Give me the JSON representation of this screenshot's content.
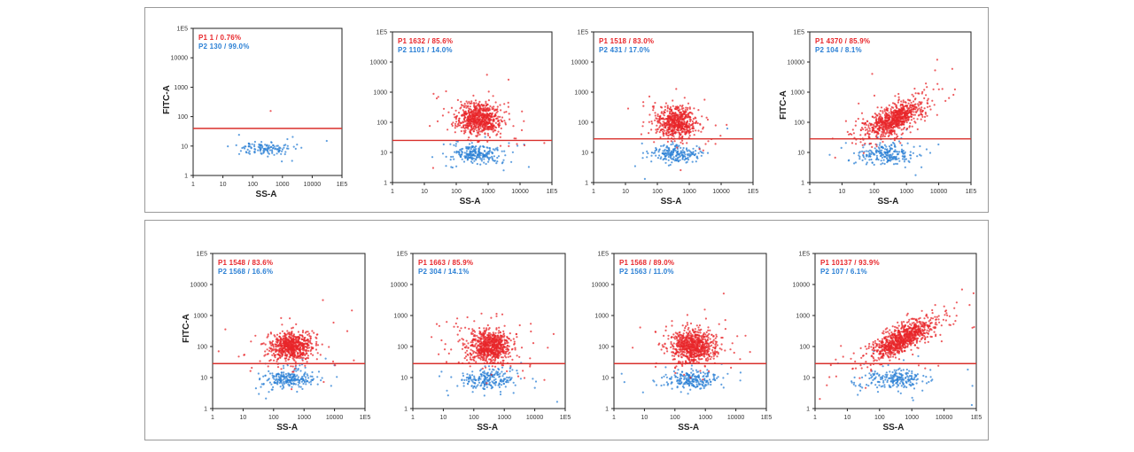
{
  "colors": {
    "p1": "#e8262a",
    "p2": "#2a7fd4",
    "gate": "#d9302c",
    "axis": "#222222",
    "frame": "#9a9a9a"
  },
  "chart_data": [
    {
      "type": "scatter",
      "row": "top",
      "index": 1,
      "xlabel": "SS-A",
      "ylabel": "FITC-A",
      "xticks": [
        "1",
        "10",
        "100",
        "1000",
        "10000",
        "1E5"
      ],
      "yticks": [
        "1",
        "10",
        "100",
        "1000",
        "10000",
        "1E5"
      ],
      "xlim": [
        0,
        5
      ],
      "ylim": [
        0,
        5
      ],
      "gate_y": 1.6,
      "gates": [
        {
          "name": "P1",
          "label": "P1  1 / 0.76%"
        },
        {
          "name": "P2",
          "label": "P2  130 / 99.0%"
        }
      ],
      "p1_cluster": {
        "count": 1,
        "cx": 2.6,
        "cy": 2.2,
        "sx": 0.1,
        "sy": 0.1
      },
      "p2_cluster": {
        "count": 130,
        "cx": 2.4,
        "cy": 0.9,
        "sx": 0.45,
        "sy": 0.12
      }
    },
    {
      "type": "scatter",
      "row": "top",
      "index": 2,
      "xlabel": "SS-A",
      "ylabel": "",
      "xticks": [
        "1",
        "10",
        "100",
        "1000",
        "10000",
        "1E5"
      ],
      "yticks": [
        "1",
        "10",
        "100",
        "1000",
        "10000",
        "1E5"
      ],
      "xlim": [
        0,
        5
      ],
      "ylim": [
        0,
        5
      ],
      "gate_y": 1.4,
      "gates": [
        {
          "name": "P1",
          "label": "P1  1632 / 85.6%"
        },
        {
          "name": "P2",
          "label": "P2  1101 / 14.0%"
        }
      ],
      "p1_cluster": {
        "count": 700,
        "cx": 2.7,
        "cy": 2.1,
        "sx": 0.35,
        "sy": 0.25
      },
      "p2_cluster": {
        "count": 230,
        "cx": 2.6,
        "cy": 0.95,
        "sx": 0.4,
        "sy": 0.15
      }
    },
    {
      "type": "scatter",
      "row": "top",
      "index": 3,
      "xlabel": "SS-A",
      "ylabel": "",
      "xticks": [
        "1",
        "10",
        "100",
        "1000",
        "10000",
        "1E5"
      ],
      "yticks": [
        "1",
        "10",
        "100",
        "1000",
        "10000",
        "1E5"
      ],
      "xlim": [
        0,
        5
      ],
      "ylim": [
        0,
        5
      ],
      "gate_y": 1.45,
      "gates": [
        {
          "name": "P1",
          "label": "P1  1518 / 83.0%"
        },
        {
          "name": "P2",
          "label": "P2  431 / 17.0%"
        }
      ],
      "p1_cluster": {
        "count": 600,
        "cx": 2.6,
        "cy": 2.0,
        "sx": 0.3,
        "sy": 0.25
      },
      "p2_cluster": {
        "count": 200,
        "cx": 2.55,
        "cy": 0.95,
        "sx": 0.4,
        "sy": 0.15
      }
    },
    {
      "type": "scatter",
      "row": "top",
      "index": 4,
      "xlabel": "SS-A",
      "ylabel": "FITC-A",
      "xticks": [
        "1",
        "10",
        "100",
        "1000",
        "10000",
        "1E5"
      ],
      "yticks": [
        "1",
        "10",
        "100",
        "1000",
        "10000",
        "1E5"
      ],
      "xlim": [
        0,
        5
      ],
      "ylim": [
        0,
        5
      ],
      "gate_y": 1.45,
      "gates": [
        {
          "name": "P1",
          "label": "P1  4370 / 85.9%"
        },
        {
          "name": "P2",
          "label": "P2  104 / 8.1%"
        }
      ],
      "p1_cluster": {
        "count": 800,
        "cx": 2.6,
        "cy": 2.1,
        "sx": 0.45,
        "sy": 0.22,
        "tilt": 0.45
      },
      "p2_cluster": {
        "count": 220,
        "cx": 2.4,
        "cy": 0.95,
        "sx": 0.45,
        "sy": 0.15
      }
    },
    {
      "type": "scatter",
      "row": "bottom",
      "index": 5,
      "xlabel": "SS-A",
      "ylabel": "FITC-A",
      "xticks": [
        "1",
        "10",
        "100",
        "1000",
        "10000",
        "1E5"
      ],
      "yticks": [
        "1",
        "10",
        "100",
        "1000",
        "10000",
        "1E5"
      ],
      "xlim": [
        0,
        5
      ],
      "ylim": [
        0,
        5
      ],
      "gate_y": 1.45,
      "gates": [
        {
          "name": "P1",
          "label": "P1  1548 / 83.6%"
        },
        {
          "name": "P2",
          "label": "P2  1568 / 16.6%"
        }
      ],
      "p1_cluster": {
        "count": 700,
        "cx": 2.6,
        "cy": 2.0,
        "sx": 0.35,
        "sy": 0.22
      },
      "p2_cluster": {
        "count": 230,
        "cx": 2.5,
        "cy": 0.95,
        "sx": 0.45,
        "sy": 0.15
      }
    },
    {
      "type": "scatter",
      "row": "bottom",
      "index": 6,
      "xlabel": "SS-A",
      "ylabel": "",
      "xticks": [
        "1",
        "10",
        "100",
        "1000",
        "10000",
        "1E5"
      ],
      "yticks": [
        "1",
        "10",
        "100",
        "1000",
        "10000",
        "1E5"
      ],
      "xlim": [
        0,
        5
      ],
      "ylim": [
        0,
        5
      ],
      "gate_y": 1.45,
      "gates": [
        {
          "name": "P1",
          "label": "P1  1663 / 85.9%"
        },
        {
          "name": "P2",
          "label": "P2  304 / 14.1%"
        }
      ],
      "p1_cluster": {
        "count": 750,
        "cx": 2.55,
        "cy": 2.0,
        "sx": 0.35,
        "sy": 0.25
      },
      "p2_cluster": {
        "count": 220,
        "cx": 2.5,
        "cy": 0.95,
        "sx": 0.45,
        "sy": 0.15
      }
    },
    {
      "type": "scatter",
      "row": "bottom",
      "index": 7,
      "xlabel": "SS-A",
      "ylabel": "",
      "xticks": [
        "1",
        "10",
        "100",
        "1000",
        "10000",
        "1E5"
      ],
      "yticks": [
        "1",
        "10",
        "100",
        "1000",
        "10000",
        "1E5"
      ],
      "xlim": [
        0,
        5
      ],
      "ylim": [
        0,
        5
      ],
      "gate_y": 1.45,
      "gates": [
        {
          "name": "P1",
          "label": "P1  1568 / 89.0%"
        },
        {
          "name": "P2",
          "label": "P2  1563 / 11.0%"
        }
      ],
      "p1_cluster": {
        "count": 750,
        "cx": 2.6,
        "cy": 2.0,
        "sx": 0.35,
        "sy": 0.25
      },
      "p2_cluster": {
        "count": 220,
        "cx": 2.55,
        "cy": 0.95,
        "sx": 0.45,
        "sy": 0.15
      }
    },
    {
      "type": "scatter",
      "row": "bottom",
      "index": 8,
      "xlabel": "SS-A",
      "ylabel": "",
      "xticks": [
        "1",
        "10",
        "100",
        "1000",
        "10000",
        "1E5"
      ],
      "yticks": [
        "1",
        "10",
        "100",
        "1000",
        "10000",
        "1E5"
      ],
      "xlim": [
        0,
        5
      ],
      "ylim": [
        0,
        5
      ],
      "gate_y": 1.45,
      "gates": [
        {
          "name": "P1",
          "label": "P1  10137 / 93.9%"
        },
        {
          "name": "P2",
          "label": "P2  107 / 6.1%"
        }
      ],
      "p1_cluster": {
        "count": 900,
        "cx": 2.7,
        "cy": 2.25,
        "sx": 0.5,
        "sy": 0.2,
        "tilt": 0.5
      },
      "p2_cluster": {
        "count": 220,
        "cx": 2.5,
        "cy": 0.95,
        "sx": 0.45,
        "sy": 0.15
      }
    }
  ]
}
